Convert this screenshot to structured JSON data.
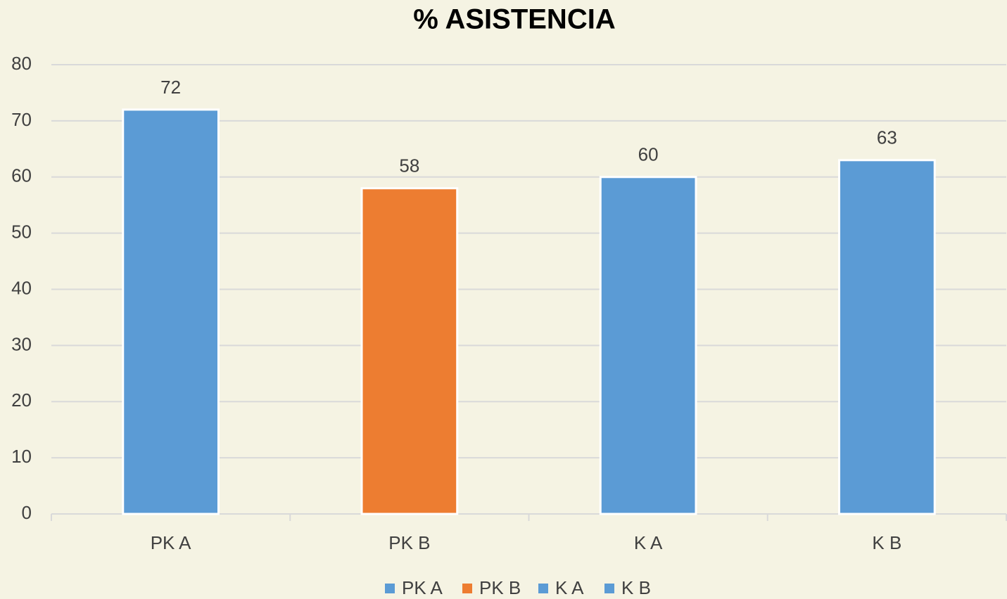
{
  "chart_data": {
    "type": "bar",
    "title": "% ASISTENCIA",
    "categories": [
      "PK A",
      "PK B",
      "K A",
      "K B"
    ],
    "values": [
      72,
      58,
      60,
      63
    ],
    "colors": [
      "#5b9bd5",
      "#ed7d31",
      "#5b9bd5",
      "#5b9bd5"
    ],
    "ylim": [
      0,
      80
    ],
    "yticks": [
      0,
      10,
      20,
      30,
      40,
      50,
      60,
      70,
      80
    ],
    "grid": true,
    "legend": "bottom"
  }
}
